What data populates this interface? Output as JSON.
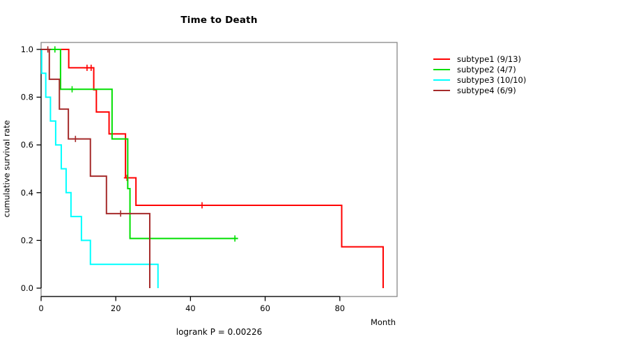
{
  "chart_data": {
    "type": "line",
    "variant": "kaplan-meier-step-curves",
    "title": "Time to Death",
    "xlabel": "Month",
    "ylabel": "cumulative survival rate",
    "annotation": "logrank P = 0.00226",
    "xlim": [
      0,
      95.5
    ],
    "ylim": [
      0.0,
      1.0
    ],
    "xticks": [
      0,
      20,
      40,
      60,
      80
    ],
    "ytick_labels": [
      "0.0",
      "0.2",
      "0.4",
      "0.6",
      "0.8",
      "1.0"
    ],
    "grid": false,
    "legend_position": "right-outside",
    "box_color": "#878787",
    "axis_color": "#000000",
    "series": [
      {
        "name": "subtype1 (9/13)",
        "color": "#FF0000",
        "steps": [
          [
            0,
            1.0
          ],
          [
            7.4,
            0.923
          ],
          [
            14.1,
            0.831
          ],
          [
            14.8,
            0.738
          ],
          [
            18.2,
            0.646
          ],
          [
            22.6,
            0.462
          ],
          [
            25.4,
            0.347
          ],
          [
            80.5,
            0.173
          ],
          [
            91.6,
            0.0
          ]
        ],
        "censors": [
          [
            12.3,
            0.923
          ],
          [
            13.4,
            0.923
          ],
          [
            23.0,
            0.462
          ],
          [
            43.1,
            0.347
          ]
        ],
        "end_time": 91.6
      },
      {
        "name": "subtype2 (4/7)",
        "color": "#00DF00",
        "steps": [
          [
            0,
            1.0
          ],
          [
            5.2,
            0.833
          ],
          [
            19.0,
            0.625
          ],
          [
            23.2,
            0.417
          ],
          [
            23.8,
            0.208
          ]
        ],
        "censors": [
          [
            3.7,
            1.0
          ],
          [
            8.3,
            0.833
          ],
          [
            51.9,
            0.208
          ]
        ],
        "end_time": 52.7
      },
      {
        "name": "subtype3 (10/10)",
        "color": "#00FFFF",
        "steps": [
          [
            0,
            1.0
          ],
          [
            0.15,
            0.9
          ],
          [
            1.25,
            0.8
          ],
          [
            2.5,
            0.7
          ],
          [
            3.9,
            0.6
          ],
          [
            5.4,
            0.5
          ],
          [
            6.7,
            0.4
          ],
          [
            8.0,
            0.3
          ],
          [
            10.8,
            0.2
          ],
          [
            13.2,
            0.1
          ],
          [
            31.3,
            0.0
          ]
        ],
        "censors": [],
        "end_time": 31.3
      },
      {
        "name": "subtype4 (6/9)",
        "color": "#A52A2A",
        "steps": [
          [
            0,
            1.0
          ],
          [
            2.2,
            0.875
          ],
          [
            4.9,
            0.75
          ],
          [
            7.3,
            0.625
          ],
          [
            13.2,
            0.469
          ],
          [
            17.5,
            0.3125
          ],
          [
            29.1,
            0.0
          ]
        ],
        "censors": [
          [
            1.8,
            1.0
          ],
          [
            9.2,
            0.625
          ],
          [
            21.3,
            0.3125
          ]
        ],
        "end_time": 29.1
      }
    ]
  }
}
